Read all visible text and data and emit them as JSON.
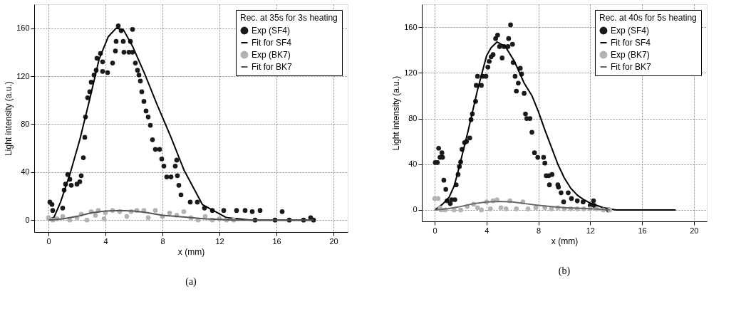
{
  "chart_data": [
    {
      "type": "scatter",
      "xlabel": "x (mm)",
      "ylabel": "Light intensity (a.u.)",
      "legend_title": "Rec. at 35s for 3s heating",
      "annotations": [
        "(a)"
      ],
      "xlim": [
        -1,
        21
      ],
      "ylim": [
        -10,
        180
      ],
      "xticks": [
        0,
        4,
        8,
        12,
        16,
        20
      ],
      "yticks": [
        0,
        40,
        80,
        120,
        160
      ],
      "grid": true,
      "legend": "top right",
      "series": [
        {
          "name": "Exp (SF4)",
          "marker": "circle",
          "color": "#1a1a1a",
          "x": [
            0.1,
            0.25,
            0.3,
            1.0,
            1.1,
            1.2,
            1.35,
            1.5,
            1.6,
            2.0,
            2.2,
            2.3,
            2.45,
            2.55,
            2.6,
            2.75,
            2.9,
            3.0,
            3.2,
            3.35,
            3.4,
            3.65,
            3.8,
            3.8,
            4.15,
            4.5,
            4.75,
            4.7,
            4.9,
            5.1,
            5.25,
            5.3,
            5.65,
            5.75,
            5.9,
            5.9,
            6.1,
            6.25,
            6.35,
            6.45,
            6.55,
            6.7,
            6.85,
            7.0,
            7.15,
            7.3,
            7.5,
            7.8,
            7.95,
            8.1,
            8.3,
            8.6,
            8.9,
            9.0,
            9.05,
            9.15,
            9.3,
            9.95,
            10.45,
            10.95,
            11.5,
            12.3,
            13.2,
            13.8,
            14.3,
            14.85,
            16.4,
            14.5,
            15.9,
            16.9,
            17.9,
            18.6,
            18.4
          ],
          "values": [
            15,
            13,
            8,
            10,
            25,
            30,
            38,
            34,
            29,
            30,
            32,
            37,
            52,
            69,
            86,
            102,
            107,
            115,
            121,
            125,
            135,
            139,
            132,
            124,
            123,
            131,
            149,
            141,
            162,
            158,
            149,
            140,
            140,
            149,
            159,
            140,
            131,
            125,
            121,
            116,
            107,
            99,
            91,
            86,
            79,
            67,
            59,
            59,
            51,
            45,
            36,
            36,
            45,
            50,
            37,
            29,
            21,
            15,
            15,
            10,
            8,
            8,
            8,
            8,
            7,
            8,
            7,
            0,
            0,
            0,
            0,
            0,
            2
          ]
        },
        {
          "name": "Fit for SF4",
          "type": "line",
          "line_style": "solid",
          "color": "#000000",
          "x": [
            0,
            0.4,
            0.85,
            1.5,
            2.2,
            2.9,
            3.55,
            4.2,
            4.75,
            5.25,
            5.9,
            6.75,
            7.6,
            8.6,
            9.5,
            10.8,
            12.5,
            14.2,
            18.6
          ],
          "values": [
            0,
            2.5,
            15,
            38,
            67,
            101,
            134,
            153,
            160,
            159,
            145,
            122,
            97,
            69,
            42,
            13,
            2,
            0,
            0
          ]
        },
        {
          "name": "Exp (BK7)",
          "marker": "circle",
          "color": "#b3b3b3",
          "x": [
            0,
            0.3,
            0.6,
            1,
            1.5,
            2,
            2.3,
            2.7,
            3,
            3.3,
            3.5,
            3.9,
            4,
            4.5,
            5,
            5.5,
            5.8,
            6.2,
            6.7,
            7,
            7.5,
            8,
            8.5,
            9,
            9.5,
            10,
            10.5,
            11,
            11.5,
            12,
            12.5,
            13
          ],
          "values": [
            2,
            0,
            1,
            3,
            0,
            2,
            5,
            0,
            7,
            4,
            8,
            1,
            6,
            8,
            7,
            3,
            7,
            8,
            8,
            2,
            8,
            3,
            6,
            4,
            7,
            2,
            0,
            3,
            0,
            1,
            0,
            0
          ]
        },
        {
          "name": "Fit for BK7",
          "type": "line",
          "line_style": "solid",
          "color": "#555555",
          "x": [
            0,
            1,
            2,
            3,
            4,
            5,
            6,
            7,
            8,
            9,
            10,
            11,
            12,
            13,
            14,
            18.6
          ],
          "values": [
            0,
            1,
            3,
            6,
            7.5,
            8,
            7.5,
            6,
            4,
            3,
            2,
            1,
            0.5,
            0,
            0,
            0
          ]
        }
      ]
    },
    {
      "type": "scatter",
      "xlabel": "x (mm)",
      "ylabel": "Light intensity (a.u.)",
      "legend_title": "Rec. at 40s for 5s heating",
      "annotations": [
        "(b)"
      ],
      "xlim": [
        -1,
        21
      ],
      "ylim": [
        -10,
        180
      ],
      "xticks": [
        0,
        4,
        8,
        12,
        16,
        20
      ],
      "yticks": [
        0,
        40,
        80,
        120,
        160
      ],
      "grid": true,
      "legend": "top right",
      "series": [
        {
          "name": "Exp (SF4)",
          "marker": "circle",
          "color": "#1a1a1a",
          "x": [
            0.04,
            0.2,
            0.3,
            0.4,
            0.55,
            0.6,
            0.7,
            0.85,
            0.95,
            1.2,
            1.3,
            1.55,
            1.65,
            1.8,
            1.9,
            2.0,
            2.1,
            2.3,
            2.45,
            2.7,
            2.8,
            2.9,
            3.15,
            3.2,
            3.3,
            3.6,
            3.7,
            3.95,
            4.1,
            4.2,
            4.35,
            4.5,
            4.7,
            4.85,
            5.0,
            5.2,
            5.35,
            5.65,
            5.7,
            5.85,
            6.0,
            6.05,
            6.2,
            6.3,
            6.45,
            6.6,
            6.9,
            6.7,
            7.0,
            7.1,
            7.35,
            7.5,
            7.7,
            7.95,
            8.4,
            8.5,
            8.6,
            8.8,
            9.05,
            8.85,
            9.5,
            9.55,
            9.75,
            10.3,
            9.95,
            10.55,
            11.0,
            11.45,
            12.25,
            12.0,
            12.3,
            13.4
          ],
          "values": [
            41.5,
            41.5,
            54,
            46,
            50,
            46,
            26,
            18,
            8,
            5.5,
            9,
            9,
            22,
            31,
            38,
            42,
            53,
            59,
            60,
            63,
            79,
            84,
            95,
            109,
            117,
            109,
            117,
            117,
            125,
            130,
            134,
            136,
            150,
            153,
            143,
            133,
            143,
            143,
            150,
            162,
            145,
            129,
            117,
            104,
            111,
            124,
            102,
            119,
            84,
            80,
            80,
            68,
            50,
            46,
            46,
            41,
            30,
            30,
            31,
            22,
            22,
            20,
            15,
            15,
            7,
            10,
            8,
            7,
            8,
            4,
            4,
            0
          ]
        },
        {
          "name": "Fit for SF4",
          "type": "line",
          "line_style": "solid",
          "color": "#000000",
          "x": [
            0,
            0.6,
            1.1,
            1.5,
            1.85,
            2.55,
            3.3,
            4.0,
            4.35,
            4.8,
            5.45,
            6.15,
            6.9,
            7.5,
            8,
            8.5,
            9,
            9.5,
            10,
            10.5,
            11,
            11.5,
            12,
            13,
            14,
            18.6
          ],
          "values": [
            0,
            5,
            11,
            21,
            36,
            68,
            105,
            135,
            142,
            147,
            143,
            130,
            111,
            100,
            86,
            70,
            55,
            40,
            28,
            19,
            13,
            9,
            6,
            2,
            0,
            0
          ]
        },
        {
          "name": "Exp (BK7)",
          "marker": "circle",
          "color": "#b3b3b3",
          "x": [
            0,
            0.25,
            0.4,
            0.5,
            0.8,
            1.5,
            2,
            2.5,
            3,
            3.3,
            3.6,
            4,
            4.3,
            4.5,
            4.8,
            5.1,
            5.5,
            5.8,
            6.3,
            6.8,
            7.2,
            7.8,
            8.5,
            9,
            9.5,
            10,
            10.5,
            11,
            11.5,
            12,
            12.5,
            13,
            13.5
          ],
          "values": [
            10,
            10,
            2,
            0,
            0,
            0,
            0,
            3,
            5,
            2,
            0,
            7,
            1,
            8,
            9,
            2,
            1,
            8,
            1,
            7,
            1,
            2,
            2,
            1,
            2,
            1,
            1,
            1,
            1,
            1,
            1,
            0,
            0
          ]
        },
        {
          "name": "Fit for BK7",
          "type": "line",
          "line_style": "solid",
          "color": "#666666",
          "x": [
            0,
            1,
            2,
            3,
            4,
            5,
            6,
            7,
            8,
            9,
            10,
            11,
            12,
            13,
            13.5
          ],
          "values": [
            0,
            1,
            3,
            5.5,
            7,
            7.5,
            7,
            5.5,
            4,
            3,
            2,
            1.5,
            1,
            0.5,
            0
          ]
        }
      ]
    }
  ]
}
